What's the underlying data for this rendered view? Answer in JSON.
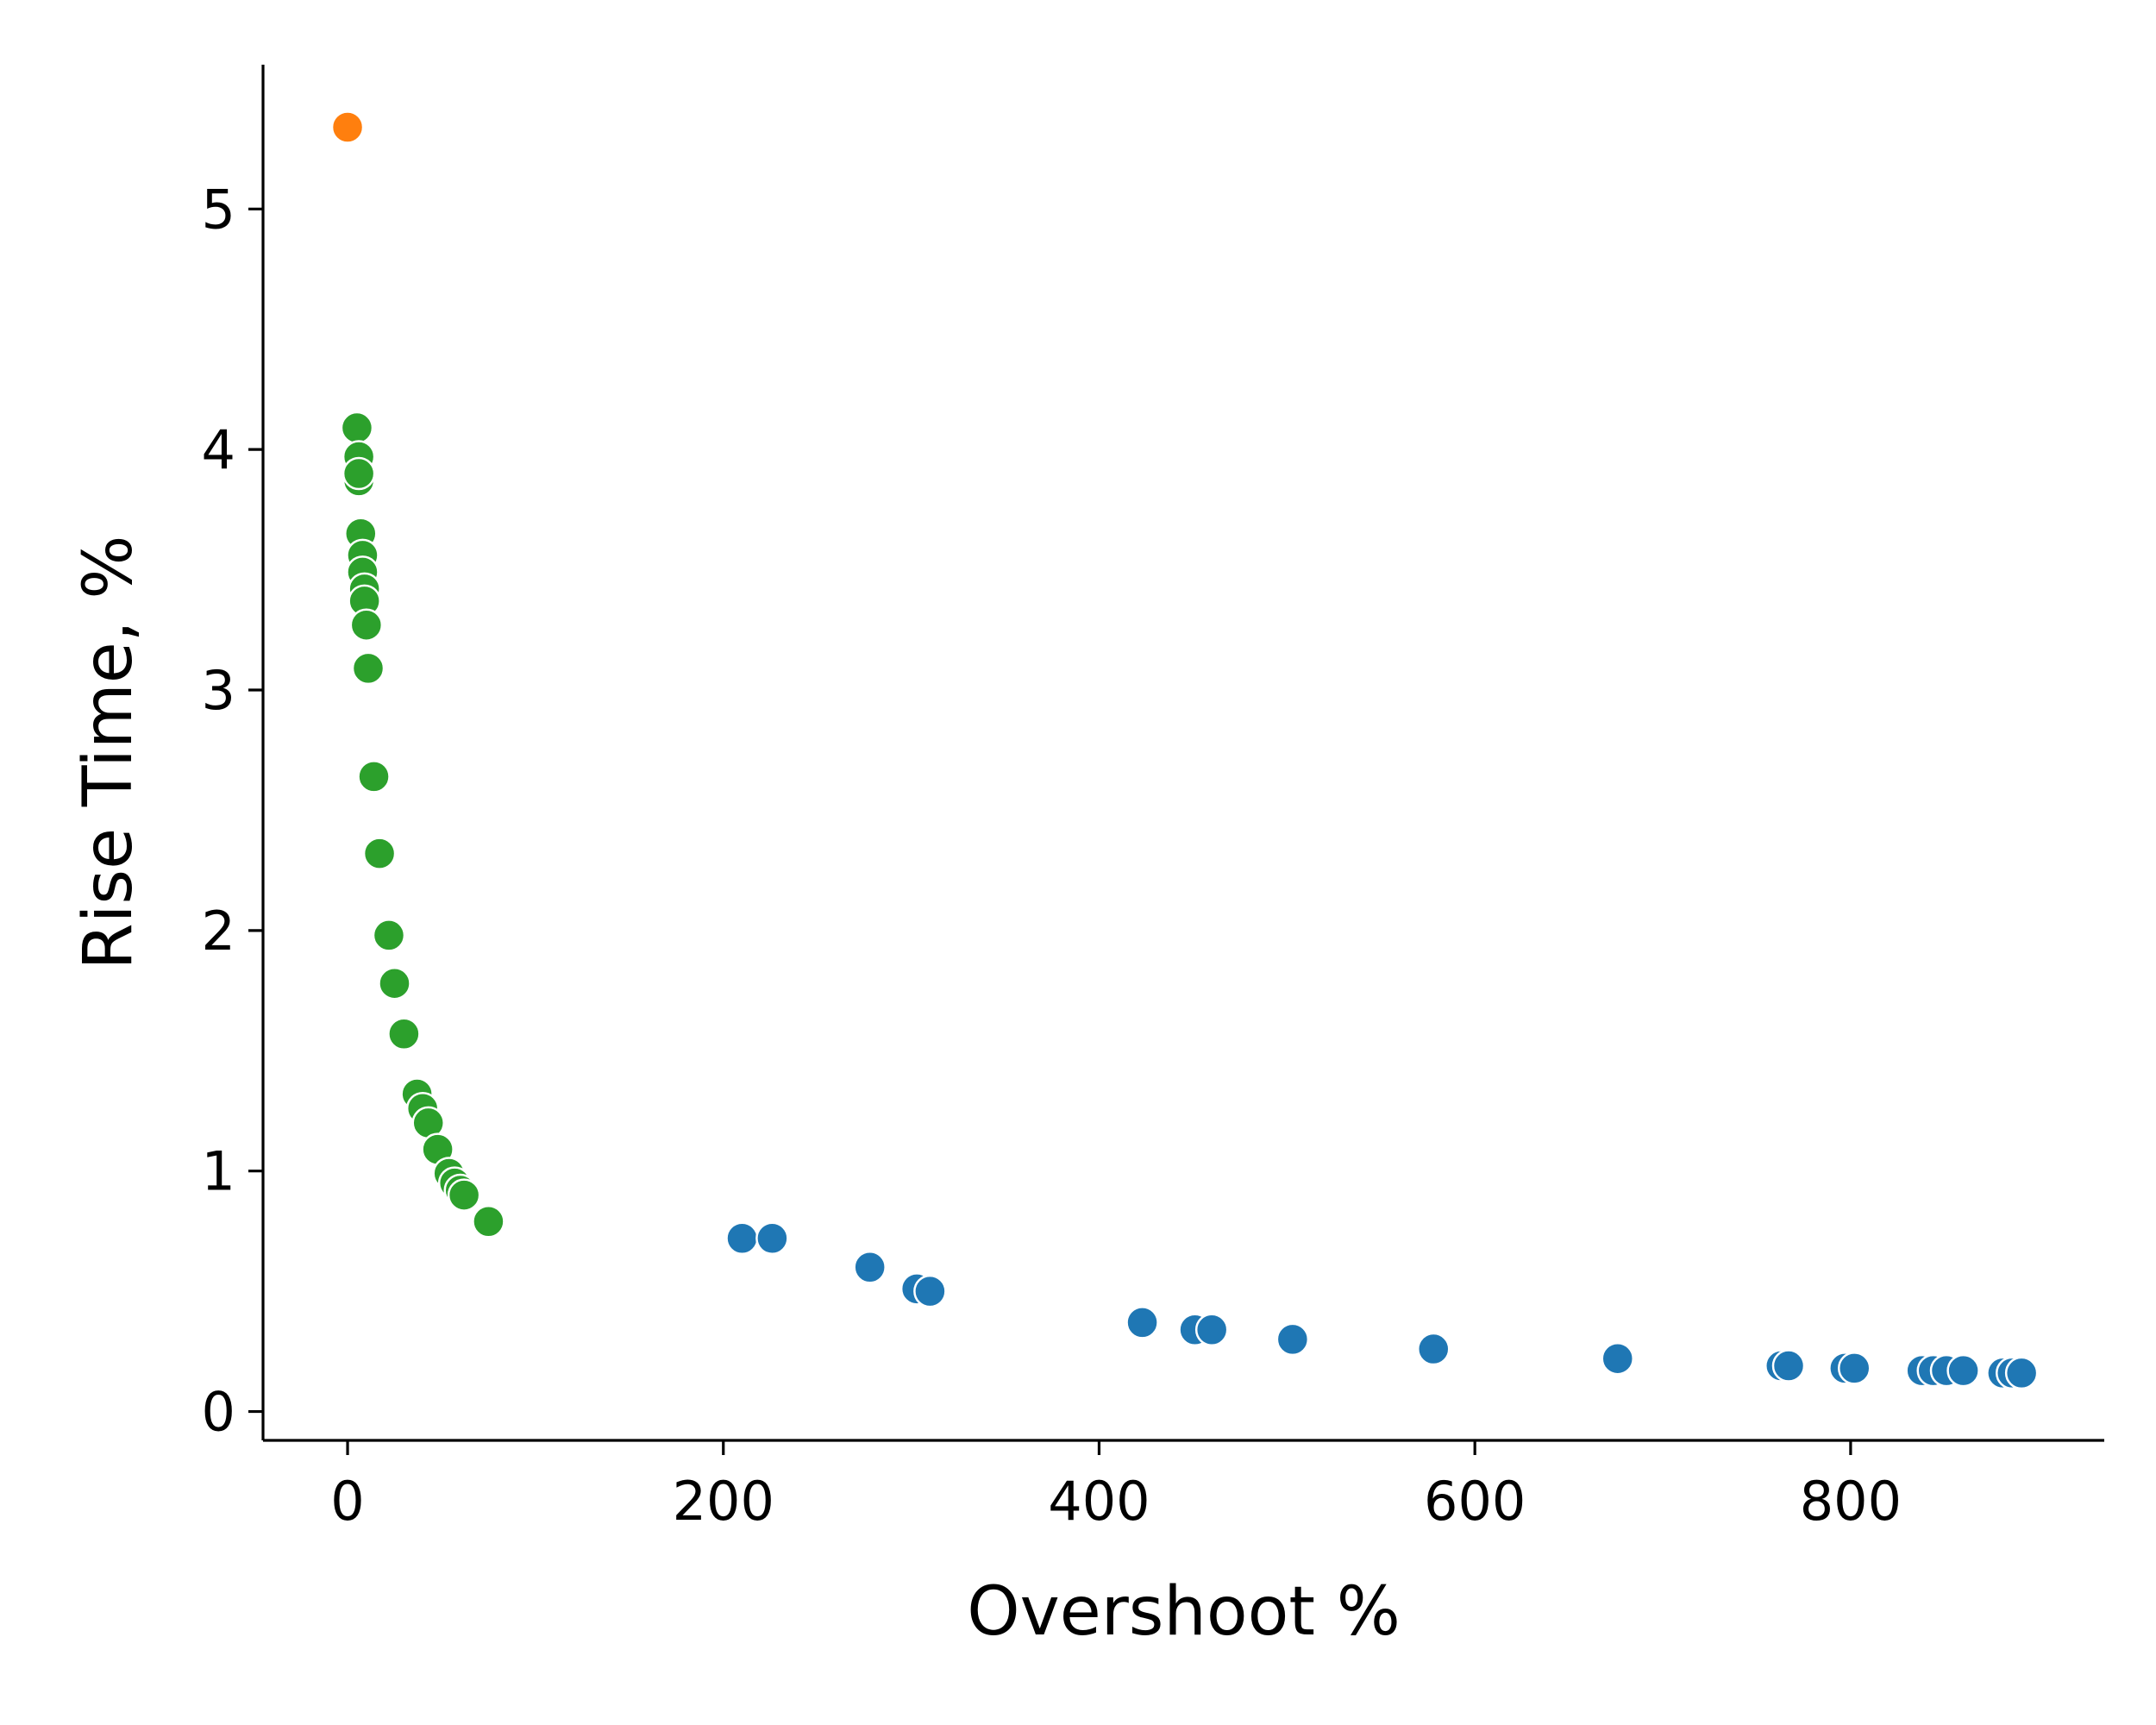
{
  "chart_data": {
    "type": "scatter",
    "title": "",
    "xlabel": "Overshoot %",
    "ylabel": "Rise Time, %",
    "xlim": [
      -45,
      935
    ],
    "ylim": [
      -0.12,
      5.6
    ],
    "xticks": [
      0,
      200,
      400,
      600,
      800
    ],
    "yticks": [
      0,
      1,
      2,
      3,
      4,
      5
    ],
    "grid": false,
    "legend": "none",
    "series": [
      {
        "color": "#ff7f0e",
        "points": [
          [
            0,
            5.34
          ]
        ]
      },
      {
        "color": "#2ca02c",
        "points": [
          [
            5,
            4.09
          ],
          [
            6,
            3.97
          ],
          [
            6,
            3.87
          ],
          [
            6,
            3.9
          ],
          [
            7,
            3.65
          ],
          [
            8,
            3.56
          ],
          [
            8,
            3.49
          ],
          [
            9,
            3.42
          ],
          [
            9,
            3.37
          ],
          [
            10,
            3.27
          ],
          [
            11,
            3.09
          ],
          [
            14,
            2.64
          ],
          [
            17,
            2.32
          ],
          [
            22,
            1.98
          ],
          [
            25,
            1.78
          ],
          [
            30,
            1.57
          ],
          [
            37,
            1.32
          ],
          [
            40,
            1.26
          ],
          [
            43,
            1.2
          ],
          [
            48,
            1.09
          ],
          [
            54,
            0.99
          ],
          [
            57,
            0.95
          ],
          [
            60,
            0.92
          ],
          [
            62,
            0.9
          ],
          [
            75,
            0.79
          ]
        ]
      },
      {
        "color": "#1f77b4",
        "points": [
          [
            210,
            0.72
          ],
          [
            226,
            0.72
          ],
          [
            278,
            0.6
          ],
          [
            303,
            0.51
          ],
          [
            310,
            0.5
          ],
          [
            423,
            0.37
          ],
          [
            451,
            0.34
          ],
          [
            460,
            0.34
          ],
          [
            503,
            0.3
          ],
          [
            578,
            0.26
          ],
          [
            676,
            0.22
          ],
          [
            763,
            0.19
          ],
          [
            767,
            0.19
          ],
          [
            797,
            0.18
          ],
          [
            802,
            0.18
          ],
          [
            838,
            0.17
          ],
          [
            844,
            0.17
          ],
          [
            851,
            0.17
          ],
          [
            860,
            0.17
          ],
          [
            881,
            0.16
          ],
          [
            886,
            0.16
          ],
          [
            891,
            0.16
          ]
        ]
      }
    ]
  }
}
